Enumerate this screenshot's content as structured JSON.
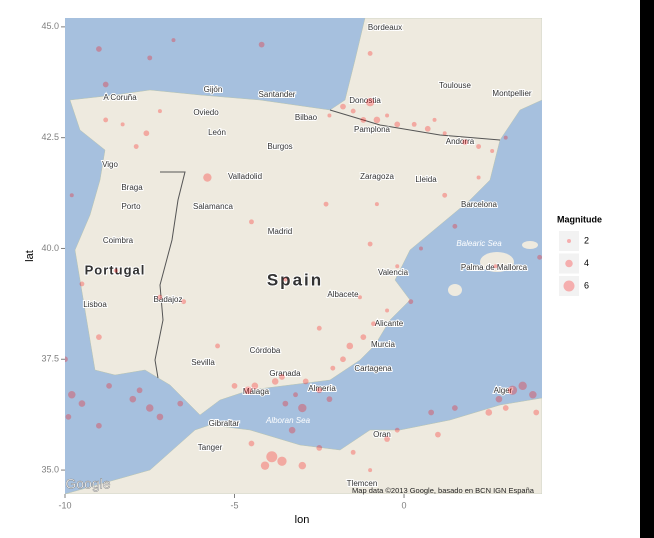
{
  "chart_data": {
    "type": "scatter",
    "x_label": "lon",
    "y_label": "lat",
    "xlim": [
      -10,
      4.07
    ],
    "ylim": [
      34.46,
      45.2
    ],
    "xticks": [
      -10,
      -5,
      0
    ],
    "yticks": [
      {
        "value": 35,
        "label": "35.0"
      },
      {
        "value": 37.5,
        "label": "37.5"
      },
      {
        "value": 40,
        "label": "40.0"
      },
      {
        "value": 42.5,
        "label": "42.5"
      },
      {
        "value": 45,
        "label": "45.0"
      }
    ],
    "legend": {
      "title": "Magnitude",
      "values": [
        2,
        4,
        6
      ],
      "position": "right"
    },
    "x": [
      -1.8,
      -1.5,
      -1.2,
      -0.8,
      -0.5,
      -0.2,
      0.3,
      0.7,
      1.2,
      1.8,
      2.2,
      2.6,
      -2.2,
      -1.0,
      0.9,
      3.0,
      -7.6,
      -7.9,
      -8.3,
      -7.2,
      -8.8,
      -1.2,
      -1.6,
      -0.9,
      -1.8,
      -2.1,
      -0.5,
      -1.3,
      -2.5,
      -3.6,
      -3.8,
      -2.9,
      -2.5,
      -4.4,
      -4.6,
      -5.0,
      -3.2,
      -2.2,
      -3.0,
      -3.5,
      -3.9,
      -3.6,
      -4.1,
      -3.0,
      -2.5,
      -4.5,
      -3.3,
      -9.8,
      -9.5,
      -9.9,
      -8.0,
      -7.5,
      -7.8,
      -8.7,
      -7.2,
      -9.0,
      -6.6,
      -10.0,
      3.2,
      3.5,
      3.8,
      2.8,
      3.0,
      2.5,
      3.9,
      1.5,
      0.8,
      -0.5,
      -0.2,
      1.0,
      -1.5,
      -1.0,
      -9.0,
      -9.5,
      -9.8,
      -8.8,
      -9.0,
      -7.5,
      -4.2,
      -6.8,
      -1.0,
      -5.8,
      -4.5,
      -3.5,
      -2.3,
      -0.8,
      -1.0,
      0.2,
      -0.2,
      1.2,
      2.2,
      -6.5,
      -5.5,
      -7.2,
      -8.5,
      1.5,
      2.7,
      4.0,
      0.5
    ],
    "series": [
      {
        "color": "#ff0000",
        "values": [
          43.2,
          43.1,
          42.9,
          42.9,
          43.0,
          42.8,
          42.8,
          42.7,
          42.6,
          42.4,
          42.3,
          42.2,
          43.0,
          43.3,
          42.9,
          42.5,
          42.6,
          42.3,
          42.8,
          43.1,
          42.9,
          38.0,
          37.8,
          38.3,
          37.5,
          37.3,
          38.6,
          38.9,
          38.2,
          37.1,
          37.0,
          37.0,
          36.8,
          36.9,
          36.8,
          36.9,
          36.7,
          36.6,
          36.4,
          36.5,
          35.3,
          35.2,
          35.1,
          35.1,
          35.5,
          35.6,
          35.9,
          36.7,
          36.5,
          36.2,
          36.6,
          36.4,
          36.8,
          36.9,
          36.2,
          36.0,
          36.5,
          37.5,
          36.8,
          36.9,
          36.7,
          36.6,
          36.4,
          36.3,
          36.3,
          36.4,
          36.3,
          35.7,
          35.9,
          35.8,
          35.4,
          35.0,
          38.0,
          39.2,
          41.2,
          43.7,
          44.5,
          44.3,
          44.6,
          44.7,
          44.4,
          41.6,
          40.6,
          39.3,
          41.0,
          41.0,
          40.1,
          38.8,
          39.6,
          41.2,
          41.6,
          38.8,
          37.8,
          38.9,
          39.5,
          40.5,
          39.6,
          39.8,
          40.0
        ],
        "sizes": [
          3,
          2.5,
          3,
          3.5,
          2,
          3,
          2.5,
          3,
          2,
          3,
          2.5,
          2,
          2,
          4.5,
          2,
          2,
          3,
          2.5,
          2,
          2,
          2.5,
          3,
          3.5,
          2.5,
          3,
          2.5,
          2,
          2,
          2.5,
          3,
          3.5,
          3,
          3,
          3.5,
          4,
          3,
          2.5,
          3,
          4.5,
          3,
          6,
          5,
          4.5,
          4,
          3,
          3,
          3.5,
          4,
          3.5,
          3,
          3.5,
          4,
          3,
          3,
          3.5,
          3,
          3,
          3,
          5,
          4.5,
          4,
          3.5,
          3,
          3.5,
          3,
          3,
          3,
          3,
          2.5,
          3,
          2.5,
          2,
          3,
          2.5,
          2,
          3,
          3,
          2.5,
          3,
          2,
          2.5,
          4.5,
          2.5,
          2,
          2.5,
          2,
          2.5,
          2.5,
          2,
          2.5,
          2,
          2.5,
          2.5,
          2.5,
          2,
          2.5,
          2,
          2.5,
          2
        ]
      }
    ],
    "map_labels": [
      "Bordeaux",
      "Toulouse",
      "Montpellier",
      "A Coruña",
      "Gijón",
      "Santander",
      "Bilbao",
      "Donostia",
      "Pamplona",
      "Oviedo",
      "León",
      "Burgos",
      "Valladolid",
      "Salamanca",
      "Zaragoza",
      "Lleida",
      "Barcelona",
      "Andorra",
      "Madrid",
      "Valencia",
      "Albacete",
      "Alicante",
      "Murcia",
      "Cartagena",
      "Córdoba",
      "Sevilla",
      "Granada",
      "Málaga",
      "Almería",
      "Badajoz",
      "Lisboa",
      "Porto",
      "Coimbra",
      "Vigo",
      "Braga",
      "Palma de Mallorca",
      "Balearic Sea",
      "Alboran Sea",
      "Gibraltar",
      "Tanger",
      "Oran",
      "Alger",
      "Tlemcen",
      "Portugal",
      "Spain"
    ],
    "attribution": "Map data ©2013 Google, basado en BCN IGN España",
    "logo": "Google"
  }
}
